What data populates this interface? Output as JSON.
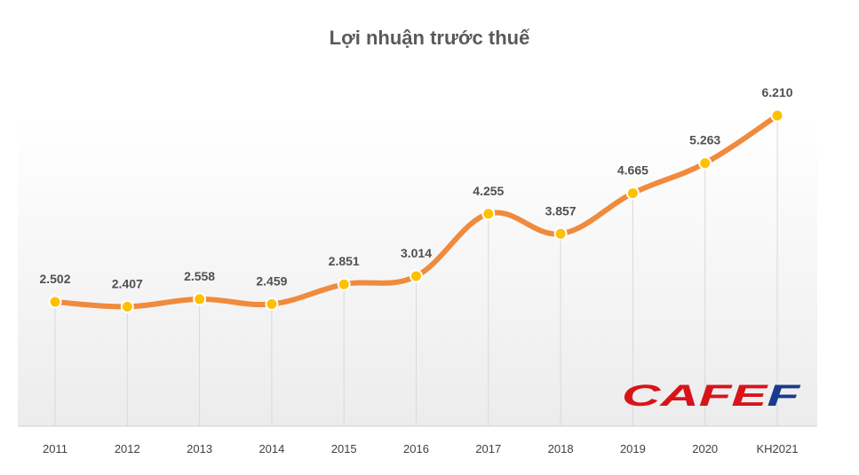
{
  "chart_data": {
    "type": "line",
    "title": "Lợi nhuận trước thuế",
    "categories": [
      "2011",
      "2012",
      "2013",
      "2014",
      "2015",
      "2016",
      "2017",
      "2018",
      "2019",
      "2020",
      "KH2021"
    ],
    "series": [
      {
        "values": [
          2502,
          2407,
          2558,
          2459,
          2851,
          3014,
          4255,
          3857,
          4665,
          5263,
          6210
        ],
        "labels": [
          "2.502",
          "2.407",
          "2.558",
          "2.459",
          "2.851",
          "3.014",
          "4.255",
          "3.857",
          "4.665",
          "5.263",
          "6.210"
        ]
      }
    ],
    "ylim": [
      0,
      7000
    ],
    "grid": false,
    "colors": {
      "line": "#f08a3c",
      "marker": "#ffc000",
      "marker_stroke": "#ffffff",
      "dropline": "#d9d9d9"
    }
  },
  "logo": {
    "text": "CAFEF",
    "colors": {
      "main": "#d7141a",
      "accent": "#1a3a8c"
    }
  }
}
